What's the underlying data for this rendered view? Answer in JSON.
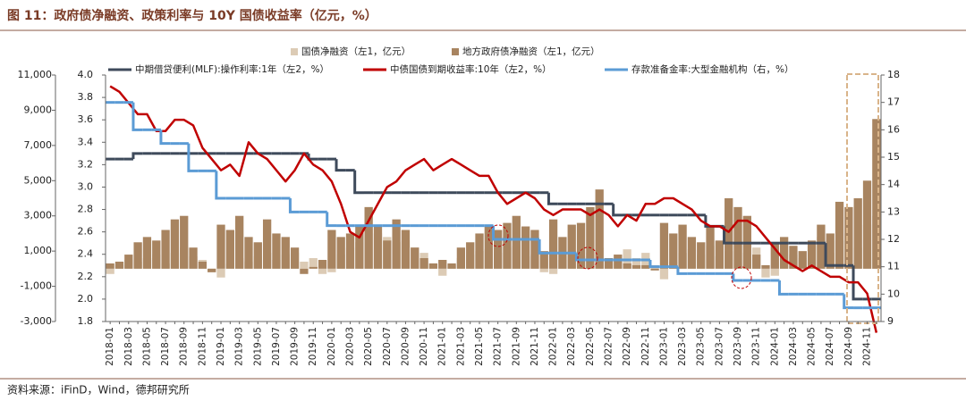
{
  "chart_data": {
    "type": "combo",
    "title": "图 11：政府债净融资、政策利率与 10Y 国债收益率（亿元，%）",
    "source": "资料来源：iFinD，Wind，德邦研究所",
    "categories": [
      "2018-01",
      null,
      "2018-03",
      null,
      "2018-05",
      null,
      "2018-07",
      null,
      "2018-09",
      null,
      "2018-11",
      null,
      "2019-01",
      null,
      "2019-03",
      null,
      "2019-05",
      null,
      "2019-07",
      null,
      "2019-09",
      null,
      "2019-11",
      null,
      "2020-01",
      null,
      "2020-03",
      null,
      "2020-05",
      null,
      "2020-07",
      null,
      "2020-09",
      null,
      "2020-11",
      null,
      "2021-01",
      null,
      "2021-03",
      null,
      "2021-05",
      null,
      "2021-07",
      null,
      "2021-09",
      null,
      "2021-11",
      null,
      "2022-01",
      null,
      "2022-03",
      null,
      "2022-05",
      null,
      "2022-07",
      null,
      "2022-09",
      null,
      "2022-11",
      null,
      "2023-01",
      null,
      "2023-03",
      null,
      "2023-05",
      null,
      "2023-07",
      null,
      "2023-09",
      null,
      "2023-11",
      null,
      "2024-01",
      null,
      "2024-03",
      null,
      "2024-05",
      null,
      "2024-07",
      null,
      "2024-09",
      null,
      "2024-11",
      null
    ],
    "ylim": [
      -3000,
      11000
    ],
    "yticks": [
      {
        "value": -3000,
        "label": "-3,000"
      },
      {
        "value": -1000,
        "label": "-1,000"
      },
      {
        "value": 1000,
        "label": "1,000"
      },
      {
        "value": 3000,
        "label": "3,000"
      },
      {
        "value": 5000,
        "label": "5,000"
      },
      {
        "value": 7000,
        "label": "7,000"
      },
      {
        "value": 9000,
        "label": "9,000"
      },
      {
        "value": 11000,
        "label": "11,000"
      }
    ],
    "y2lim": [
      1.8,
      4.0
    ],
    "y2ticks": [
      1.8,
      {
        "value": 2,
        "label": "2.0"
      },
      2.2,
      2.4,
      2.6,
      2.8,
      {
        "value": 3,
        "label": "3.0"
      },
      3.2,
      3.4,
      3.6,
      3.8,
      {
        "value": 4,
        "label": "4.0"
      }
    ],
    "y3lim": [
      9,
      18
    ],
    "y3ticks": [
      9,
      10,
      11,
      12,
      13,
      14,
      15,
      16,
      17,
      18
    ],
    "series": [
      {
        "name": "国债净融资（左1，亿元）",
        "type": "bar",
        "axis": "y",
        "color": "#dccbb5",
        "values": [
          -300,
          200,
          500,
          400,
          600,
          800,
          300,
          900,
          1200,
          700,
          500,
          -200,
          -500,
          300,
          600,
          400,
          700,
          900,
          500,
          800,
          900,
          400,
          600,
          -300,
          -200,
          800,
          1200,
          1500,
          2500,
          2000,
          1800,
          1500,
          1600,
          1200,
          900,
          300,
          -400,
          200,
          600,
          800,
          1000,
          1100,
          900,
          1200,
          1300,
          700,
          800,
          -200,
          -300,
          500,
          1000,
          700,
          900,
          1200,
          600,
          800,
          1100,
          600,
          900,
          200,
          -600,
          400,
          900,
          1100,
          800,
          1300,
          700,
          1000,
          1500,
          900,
          1200,
          -500,
          -400,
          300,
          800,
          600,
          1400,
          1800,
          900,
          1600,
          2000,
          1200,
          2500,
          3000
        ]
      },
      {
        "name": "地方政府债净融资（左1，亿元）",
        "type": "bar",
        "axis": "y",
        "color": "#a88460",
        "values": [
          300,
          400,
          800,
          1500,
          1800,
          1600,
          2200,
          2800,
          3000,
          1200,
          400,
          -200,
          2500,
          2200,
          3000,
          1800,
          1500,
          2800,
          2000,
          1800,
          1200,
          -300,
          100,
          500,
          2200,
          1800,
          2000,
          2500,
          3500,
          2500,
          1600,
          2800,
          2200,
          1200,
          600,
          300,
          500,
          300,
          1200,
          1500,
          2000,
          2500,
          2200,
          2600,
          3000,
          2400,
          2200,
          1000,
          2800,
          1800,
          2500,
          2600,
          3500,
          4500,
          600,
          800,
          300,
          200,
          200,
          -100,
          2600,
          2000,
          2500,
          1800,
          1500,
          2400,
          1600,
          4000,
          3500,
          3000,
          800,
          200,
          1500,
          1800,
          1300,
          1000,
          1600,
          2500,
          2000,
          3800,
          3500,
          4000,
          5000,
          8500
        ]
      },
      {
        "name": "中期借贷便利(MLF):操作利率:1年（左2，%）",
        "type": "line",
        "step": true,
        "axis": "y2",
        "color": "#3e4a5b",
        "values": [
          3.25,
          3.25,
          3.25,
          3.3,
          3.3,
          3.3,
          3.3,
          3.3,
          3.3,
          3.3,
          3.3,
          3.3,
          3.3,
          3.3,
          3.3,
          3.3,
          3.3,
          3.3,
          3.3,
          3.3,
          3.3,
          3.3,
          3.25,
          3.25,
          3.25,
          3.15,
          3.15,
          2.95,
          2.95,
          2.95,
          2.95,
          2.95,
          2.95,
          2.95,
          2.95,
          2.95,
          2.95,
          2.95,
          2.95,
          2.95,
          2.95,
          2.95,
          2.95,
          2.95,
          2.95,
          2.95,
          2.95,
          2.95,
          2.85,
          2.85,
          2.85,
          2.85,
          2.85,
          2.85,
          2.85,
          2.75,
          2.75,
          2.75,
          2.75,
          2.75,
          2.75,
          2.75,
          2.75,
          2.75,
          2.75,
          2.65,
          2.65,
          2.5,
          2.5,
          2.5,
          2.5,
          2.5,
          2.5,
          2.5,
          2.5,
          2.5,
          2.5,
          2.5,
          2.3,
          2.3,
          2.3,
          2.0,
          2.0,
          2.0
        ]
      },
      {
        "name": "中债国债到期收益率:10年（左2，%）",
        "type": "line",
        "step": false,
        "axis": "y2",
        "color": "#c00000",
        "values": [
          3.9,
          3.85,
          3.75,
          3.65,
          3.65,
          3.5,
          3.5,
          3.6,
          3.6,
          3.55,
          3.35,
          3.25,
          3.15,
          3.2,
          3.1,
          3.4,
          3.3,
          3.25,
          3.15,
          3.05,
          3.15,
          3.3,
          3.2,
          3.15,
          3.05,
          2.85,
          2.6,
          2.55,
          2.7,
          2.85,
          3.0,
          3.05,
          3.15,
          3.2,
          3.25,
          3.15,
          3.2,
          3.25,
          3.2,
          3.15,
          3.1,
          3.1,
          2.95,
          2.85,
          2.9,
          2.95,
          2.9,
          2.8,
          2.75,
          2.8,
          2.8,
          2.8,
          2.75,
          2.8,
          2.75,
          2.65,
          2.75,
          2.7,
          2.85,
          2.85,
          2.9,
          2.9,
          2.85,
          2.8,
          2.7,
          2.65,
          2.65,
          2.6,
          2.7,
          2.7,
          2.65,
          2.55,
          2.45,
          2.35,
          2.3,
          2.25,
          2.3,
          2.25,
          2.2,
          2.2,
          2.15,
          2.15,
          2.05,
          1.7
        ]
      },
      {
        "name": "存款准备金率:大型金融机构（右，%）",
        "type": "line",
        "step": true,
        "axis": "y3",
        "color": "#5b9bd5",
        "values": [
          17,
          17,
          17,
          16,
          16,
          16,
          15.5,
          15.5,
          15.5,
          14.5,
          14.5,
          14.5,
          13.5,
          13.5,
          13.5,
          13.5,
          13.5,
          13.5,
          13.5,
          13.5,
          13,
          13,
          13,
          13,
          12.5,
          12.5,
          12.5,
          12.5,
          12.5,
          12.5,
          12.5,
          12.5,
          12.5,
          12.5,
          12.5,
          12.5,
          12.5,
          12.5,
          12.5,
          12.5,
          12.5,
          12.5,
          12,
          12,
          12,
          12,
          12,
          11.5,
          11.5,
          11.5,
          11.5,
          11.25,
          11.25,
          11.25,
          11.25,
          11.25,
          11.25,
          11.25,
          11.25,
          11,
          11,
          11,
          10.75,
          10.75,
          10.75,
          10.75,
          10.75,
          10.75,
          10.5,
          10.5,
          10.5,
          10.5,
          10.5,
          10,
          10,
          10,
          10,
          10,
          10,
          10,
          9.5,
          9.5,
          9.5,
          9.5
        ]
      }
    ]
  }
}
